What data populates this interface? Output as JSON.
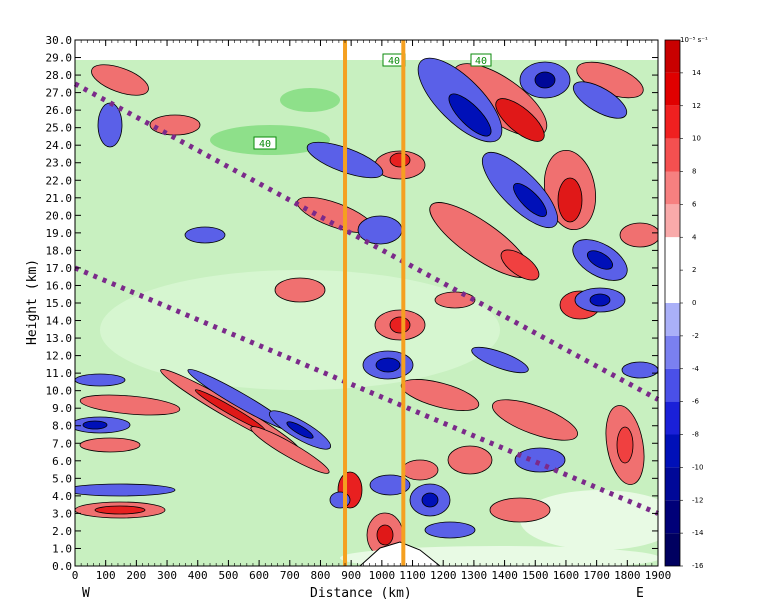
{
  "chart_data": {
    "type": "heatmap",
    "title": "",
    "xlabel": "Distance (km)",
    "ylabel": "Height (km)",
    "x_ticks": [
      "0",
      "100",
      "200",
      "300",
      "400",
      "500",
      "600",
      "700",
      "800",
      "900",
      "1000",
      "1100",
      "1200",
      "1300",
      "1400",
      "1500",
      "1600",
      "1700",
      "1800",
      "1900"
    ],
    "xlim": [
      0,
      1900
    ],
    "y_ticks": [
      "0.0",
      "1.0",
      "2.0",
      "3.0",
      "4.0",
      "5.0",
      "6.0",
      "7.0",
      "8.0",
      "9.0",
      "10.0",
      "11.0",
      "12.0",
      "13.0",
      "14.0",
      "15.0",
      "16.0",
      "17.0",
      "18.0",
      "19.0",
      "20.0",
      "21.0",
      "22.0",
      "23.0",
      "24.0",
      "25.0",
      "26.0",
      "27.0",
      "28.0",
      "29.0",
      "30.0"
    ],
    "ylim": [
      0,
      30
    ],
    "direction_left": "W",
    "direction_right": "E",
    "colorbar": {
      "unit": "10⁻⁵ s⁻¹",
      "ticks": [
        "14",
        "12",
        "10",
        "8",
        "6",
        "4",
        "2",
        "0",
        "-2",
        "-4",
        "-6",
        "-8",
        "-10",
        "-12",
        "-14",
        "-16"
      ],
      "colors": [
        "#c80000",
        "#e00000",
        "#f02020",
        "#f55050",
        "#f78080",
        "#f9aaaa",
        "#ffffff",
        "#ffffff",
        "#aab0f8",
        "#7a80f0",
        "#4a50e8",
        "#1a20d8",
        "#0010b8",
        "#000898",
        "#000078",
        "#000060"
      ]
    },
    "contour_labels": [
      "40",
      "40",
      "40"
    ],
    "vertical_lines_km": [
      880,
      1070
    ],
    "line_color": "#f5a020",
    "dotted_lines": [
      {
        "from": [
          0,
          27.5
        ],
        "to": [
          1900,
          9.5
        ]
      },
      {
        "from": [
          0,
          17.0
        ],
        "to": [
          1900,
          3.0
        ]
      }
    ],
    "dotted_color": "#7b2a8a",
    "positive_color": "#f07070",
    "negative_color": "#5a60e8",
    "background_color": "#c8f0c0"
  }
}
